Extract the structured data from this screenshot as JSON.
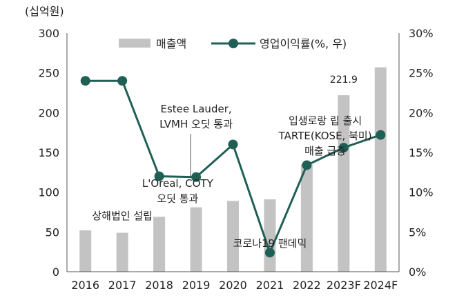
{
  "chart_data": {
    "type": "bar+line",
    "unit_label": "(십억원)",
    "categories": [
      "2016",
      "2017",
      "2018",
      "2019",
      "2020",
      "2021",
      "2022",
      "2023F",
      "2024F"
    ],
    "series": [
      {
        "name": "매출액",
        "kind": "bar",
        "axis": "left",
        "color": "#c3c3c3",
        "values": [
          52,
          49,
          69,
          81,
          89,
          91,
          135,
          221.9,
          257
        ]
      },
      {
        "name": "영업이익률(%, 우)",
        "kind": "line",
        "axis": "right",
        "color": "#1f5f55",
        "values": [
          24.0,
          24.0,
          12.0,
          11.9,
          16.0,
          2.4,
          13.4,
          15.6,
          17.2
        ]
      }
    ],
    "y_left": {
      "min": 0,
      "max": 300,
      "ticks": [
        0,
        50,
        100,
        150,
        200,
        250,
        300
      ]
    },
    "y_right": {
      "min": 0,
      "max": 30,
      "ticks": [
        "0%",
        "5%",
        "10%",
        "15%",
        "20%",
        "25%",
        "30%"
      ]
    },
    "value_label": {
      "index": 7,
      "text": "221.9"
    },
    "legend_position": "top",
    "grid": false,
    "annotations": [
      {
        "index": 1,
        "lines": [
          "상해법인 설립"
        ]
      },
      {
        "index": 2.5,
        "lines": [
          "L'Oreal, COTY",
          "오딧 통과"
        ]
      },
      {
        "index": 3,
        "lines": [
          "Estee Lauder,",
          "LVMH 오딧 통과"
        ]
      },
      {
        "index": 5,
        "lines": [
          "코로나19 팬데믹"
        ]
      },
      {
        "index": 6.5,
        "lines": [
          "입생로랑 립 출시",
          "TARTE(KOSE, 북미)",
          "매출 급증"
        ]
      }
    ]
  }
}
